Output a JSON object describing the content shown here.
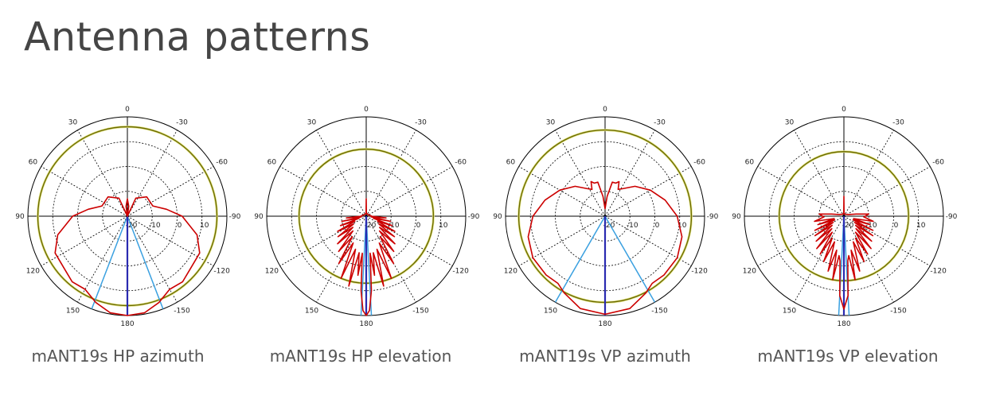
{
  "page_title": "Antenna patterns",
  "colors": {
    "pattern": "#cc0000",
    "reference_circle": "#6b6b00",
    "beam_line": "#2a2ab0",
    "beam_edge": "#3aa0e0",
    "grid": "#000000"
  },
  "chart_data": [
    {
      "type": "polar-line",
      "caption": "mANT19s HP azimuth",
      "angle_ticks": [
        "0",
        "30",
        "60",
        "90",
        "120",
        "150",
        "180",
        "-150",
        "-120",
        "-90",
        "-60",
        "-30"
      ],
      "radial_ticks": [
        "-20",
        "-10",
        "0",
        "10"
      ],
      "rlim": [
        -20,
        20
      ],
      "rstep": 10,
      "angle_direction": "counterclockwise, 0 at top",
      "reference_circle_db": 16,
      "beam_center_deg": 180,
      "beam_edges_deg": [
        159,
        -159
      ],
      "symmetric": true,
      "pattern": {
        "angle": [
          0,
          8,
          15,
          25,
          45,
          68,
          80,
          90,
          105,
          117,
          130,
          140,
          150,
          160,
          170,
          180
        ],
        "db": [
          -13,
          -16,
          -20,
          -12,
          -9,
          -9,
          -4,
          2,
          9,
          12.6,
          13,
          14.5,
          14,
          17,
          19.5,
          20
        ]
      }
    },
    {
      "type": "polar-line",
      "caption": "mANT19s HP elevation",
      "angle_ticks": [
        "0",
        "30",
        "60",
        "90",
        "120",
        "150",
        "180",
        "-150",
        "-120",
        "-90",
        "-60",
        "-30"
      ],
      "radial_ticks": [
        "-20",
        "-10",
        "0",
        "10"
      ],
      "rlim": [
        -20,
        20
      ],
      "rstep": 10,
      "angle_direction": "counterclockwise, 0 at top",
      "reference_circle_db": 7,
      "beam_center_deg": 180,
      "beam_edges_deg": [
        177,
        -177
      ],
      "symmetric": true,
      "pattern": {
        "angle": [
          0,
          3,
          10,
          30,
          60,
          85,
          90,
          95,
          98,
          102,
          106,
          110,
          114,
          118,
          122,
          126,
          130,
          134,
          138,
          142,
          146,
          150,
          154,
          158,
          162,
          166,
          169,
          172,
          174,
          176,
          178,
          180
        ],
        "db": [
          -13,
          -19,
          -19,
          -19,
          -19,
          -18,
          -18,
          -12,
          -18,
          -10,
          -17,
          -9,
          -15,
          -7,
          -14,
          -6,
          -13,
          -4,
          -12,
          -2,
          -10,
          2,
          -8,
          7,
          -6,
          9,
          -5,
          4,
          -5,
          10,
          18,
          20
        ]
      }
    },
    {
      "type": "polar-line",
      "caption": "mANT19s VP azimuth",
      "angle_ticks": [
        "0",
        "30",
        "60",
        "90",
        "120",
        "150",
        "180",
        "-150",
        "-120",
        "-90",
        "-60",
        "-30"
      ],
      "radial_ticks": [
        "-20",
        "-10",
        "0",
        "10"
      ],
      "rlim": [
        -20,
        20
      ],
      "rstep": 10,
      "angle_direction": "counterclockwise, 0 at top",
      "reference_circle_db": 14.7,
      "beam_center_deg": 180,
      "beam_edges_deg": [
        150,
        -150
      ],
      "symmetric": true,
      "pattern": {
        "angle": [
          0,
          6,
          12,
          18,
          22,
          26,
          32,
          45,
          60,
          75,
          90,
          105,
          120,
          135,
          145,
          152,
          165,
          180
        ],
        "db": [
          -17,
          -12,
          -6,
          -6,
          -5,
          -8,
          -7,
          -3,
          1,
          5,
          9,
          12,
          13.5,
          13.5,
          13,
          15,
          18.5,
          19.5
        ]
      }
    },
    {
      "type": "polar-line",
      "caption": "mANT19s VP elevation",
      "angle_ticks": [
        "0",
        "30",
        "60",
        "90",
        "120",
        "150",
        "180",
        "-150",
        "-120",
        "-90",
        "-60",
        "-30"
      ],
      "radial_ticks": [
        "-20",
        "-10",
        "0",
        "10"
      ],
      "rlim": [
        -20,
        20
      ],
      "rstep": 10,
      "angle_direction": "counterclockwise, 0 at top",
      "reference_circle_db": 6,
      "beam_center_deg": 180,
      "beam_edges_deg": [
        177,
        -177
      ],
      "symmetric": true,
      "pattern": {
        "angle": [
          0,
          4,
          10,
          40,
          70,
          80,
          85,
          92,
          100,
          104,
          108,
          112,
          116,
          120,
          124,
          128,
          132,
          136,
          140,
          144,
          148,
          152,
          156,
          160,
          164,
          168,
          170,
          173,
          175,
          177,
          180
        ],
        "db": [
          -12,
          -19,
          -19,
          -19,
          -18,
          -15,
          -10,
          -12,
          -8,
          -16,
          -9,
          -16,
          -7,
          -15,
          -6,
          -14,
          -5,
          -13,
          -3,
          -12,
          -2,
          -10,
          0,
          -9,
          3,
          -6,
          6,
          -4,
          -2,
          12,
          17.4
        ]
      }
    }
  ]
}
